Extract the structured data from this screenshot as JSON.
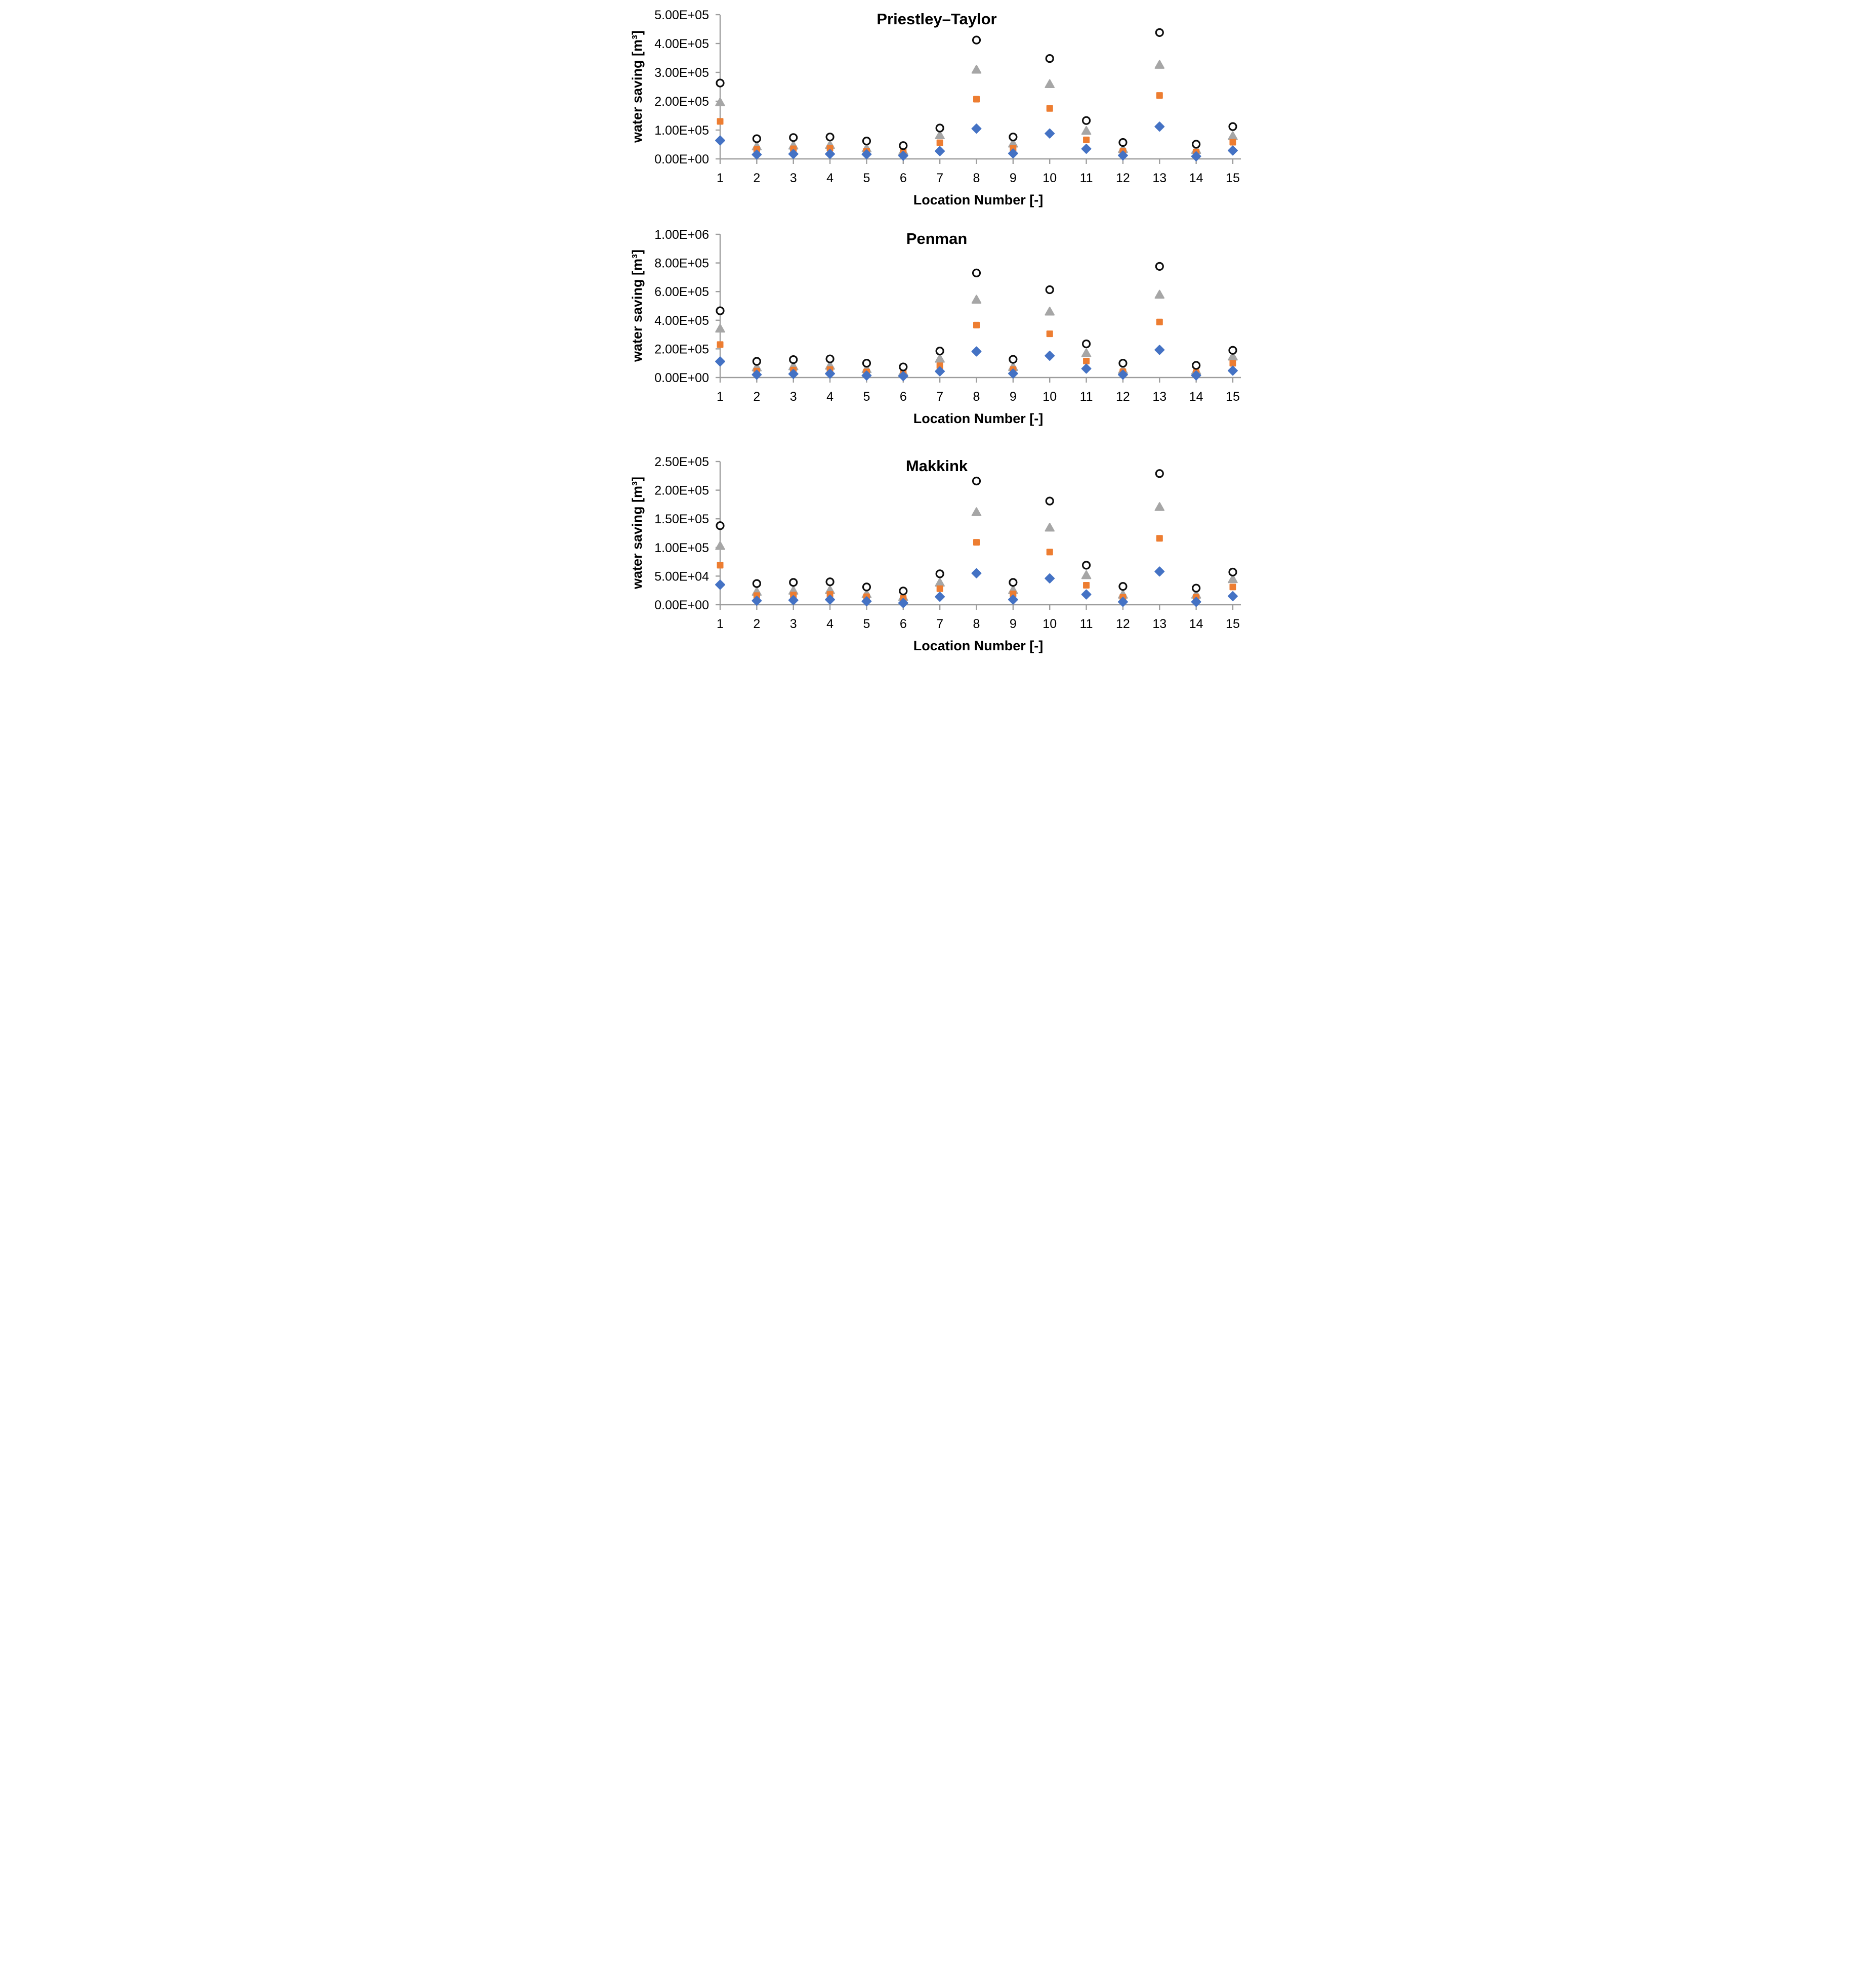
{
  "colors": {
    "diamond": "#4472C4",
    "square": "#ED7D31",
    "triangle": "#A6A6A6",
    "circle_stroke": "#0d0d0d",
    "circle_fill": "#FFFFFF",
    "axis": "#9d9d9d",
    "text": "#000000"
  },
  "chart_data": [
    {
      "type": "scatter",
      "title": "Priestley–Taylor",
      "xlabel": "Location Number [-]",
      "ylabel": "water saving [m³]",
      "grid": false,
      "legend": "none",
      "x": [
        1,
        2,
        3,
        4,
        5,
        6,
        7,
        8,
        9,
        10,
        11,
        12,
        13,
        14,
        15
      ],
      "xlim": [
        1,
        15
      ],
      "ylim": [
        0,
        500000
      ],
      "y_tick_step": 100000,
      "y_tick_labels": [
        "0.00E+00",
        "1.00E+05",
        "2.00E+05",
        "3.00E+05",
        "4.00E+05",
        "5.00E+05"
      ],
      "series": [
        {
          "name": "blue-diamond",
          "marker": "diamond",
          "color": "#4472C4",
          "values": [
            64000,
            15000,
            17000,
            17000,
            16000,
            11000,
            27000,
            105000,
            19000,
            88000,
            35000,
            12000,
            112000,
            9000,
            29000
          ]
        },
        {
          "name": "orange-square",
          "marker": "square",
          "color": "#ED7D31",
          "values": [
            130000,
            33000,
            35000,
            37000,
            27000,
            25000,
            56000,
            207000,
            37000,
            175000,
            66000,
            26000,
            220000,
            24000,
            58000
          ]
        },
        {
          "name": "gray-triangle",
          "marker": "triangle",
          "color": "#A6A6A6",
          "values": [
            197000,
            44000,
            47000,
            49000,
            37000,
            28000,
            83000,
            310000,
            54000,
            260000,
            98000,
            35000,
            327000,
            32000,
            80000
          ]
        },
        {
          "name": "open-circle",
          "marker": "circle",
          "color": "#0d0d0d",
          "values": [
            263000,
            70000,
            74000,
            76000,
            62000,
            46000,
            107000,
            412000,
            76000,
            348000,
            133000,
            57000,
            438000,
            51000,
            112000
          ]
        }
      ]
    },
    {
      "type": "scatter",
      "title": "Penman",
      "xlabel": "Location Number [-]",
      "ylabel": "water saving [m³]",
      "grid": false,
      "legend": "none",
      "x": [
        1,
        2,
        3,
        4,
        5,
        6,
        7,
        8,
        9,
        10,
        11,
        12,
        13,
        14,
        15
      ],
      "xlim": [
        1,
        15
      ],
      "ylim": [
        0,
        1000000
      ],
      "y_tick_step": 200000,
      "y_tick_labels": [
        "0.00E+00",
        "2.00E+05",
        "4.00E+05",
        "6.00E+05",
        "8.00E+05",
        "1.00E+06"
      ],
      "series": [
        {
          "name": "blue-diamond",
          "marker": "diamond",
          "color": "#4472C4",
          "values": [
            112000,
            20000,
            25000,
            27000,
            14000,
            10000,
            43000,
            182000,
            28000,
            152000,
            62000,
            20000,
            193000,
            15000,
            48000
          ]
        },
        {
          "name": "orange-square",
          "marker": "square",
          "color": "#ED7D31",
          "values": [
            230000,
            45000,
            52000,
            55000,
            39000,
            33000,
            82000,
            366000,
            55000,
            305000,
            115000,
            40000,
            388000,
            35000,
            100000
          ]
        },
        {
          "name": "gray-triangle",
          "marker": "triangle",
          "color": "#A6A6A6",
          "values": [
            343000,
            72000,
            80000,
            84000,
            60000,
            40000,
            133000,
            545000,
            75000,
            462000,
            172000,
            55000,
            580000,
            50000,
            148000
          ]
        },
        {
          "name": "open-circle",
          "marker": "circle",
          "color": "#0d0d0d",
          "values": [
            466000,
            113000,
            125000,
            130000,
            100000,
            74000,
            185000,
            730000,
            127000,
            613000,
            235000,
            100000,
            776000,
            85000,
            190000
          ]
        }
      ]
    },
    {
      "type": "scatter",
      "title": "Makkink",
      "xlabel": "Location Number [-]",
      "ylabel": "water saving [m³]",
      "grid": false,
      "legend": "none",
      "x": [
        1,
        2,
        3,
        4,
        5,
        6,
        7,
        8,
        9,
        10,
        11,
        12,
        13,
        14,
        15
      ],
      "xlim": [
        1,
        15
      ],
      "ylim": [
        0,
        250000
      ],
      "y_tick_step": 50000,
      "y_tick_labels": [
        "0.00E+00",
        "5.00E+04",
        "1.00E+05",
        "1.50E+05",
        "2.00E+05",
        "2.50E+05"
      ],
      "series": [
        {
          "name": "blue-diamond",
          "marker": "diamond",
          "color": "#4472C4",
          "values": [
            35000,
            7000,
            8000,
            9000,
            6000,
            3000,
            14000,
            55000,
            9000,
            46000,
            18000,
            5000,
            58000,
            5000,
            15000
          ]
        },
        {
          "name": "orange-square",
          "marker": "square",
          "color": "#ED7D31",
          "values": [
            69000,
            16000,
            17000,
            18000,
            14000,
            11000,
            28000,
            109000,
            19000,
            92000,
            34000,
            13000,
            116000,
            13000,
            31000
          ]
        },
        {
          "name": "gray-triangle",
          "marker": "triangle",
          "color": "#A6A6A6",
          "values": [
            103000,
            23000,
            25000,
            26000,
            19000,
            14000,
            39000,
            162000,
            26000,
            135000,
            52000,
            18000,
            171000,
            18000,
            45000
          ]
        },
        {
          "name": "open-circle",
          "marker": "circle",
          "color": "#0d0d0d",
          "values": [
            138000,
            37000,
            39000,
            40000,
            31000,
            24000,
            54000,
            216000,
            39000,
            181000,
            69000,
            32000,
            229000,
            29000,
            57000
          ]
        }
      ]
    }
  ]
}
